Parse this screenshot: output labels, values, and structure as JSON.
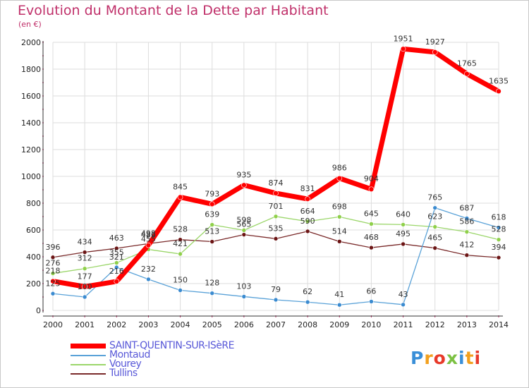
{
  "title": "Evolution du Montant de la Dette par Habitant",
  "unit_label": "(en €)",
  "logo_text": "Proxiti",
  "chart_data": {
    "type": "line",
    "title": "Evolution du Montant de la Dette par Habitant",
    "ylabel": "(en €)",
    "xlabel": "",
    "ylim": [
      0,
      2000
    ],
    "yticks": [
      0,
      200,
      400,
      600,
      800,
      1000,
      1200,
      1400,
      1600,
      1800,
      2000
    ],
    "grid": true,
    "legend_position": "bottom-left",
    "x": [
      "2000",
      "2001",
      "2002",
      "2003",
      "2004",
      "2005",
      "2006",
      "2007",
      "2008",
      "2009",
      "2010",
      "2011",
      "2012",
      "2013",
      "2014"
    ],
    "series": [
      {
        "name": "Tullins",
        "color": "#7a2a2a",
        "marker": "#6b1414",
        "width": 1.3,
        "values": [
          396,
          434,
          463,
          498,
          528,
          513,
          565,
          535,
          590,
          514,
          468,
          495,
          465,
          412,
          394
        ]
      },
      {
        "name": "Vourey",
        "color": "#9bd66a",
        "marker": "#8fd04a",
        "width": 1.3,
        "values": [
          276,
          312,
          355,
          455,
          421,
          639,
          598,
          701,
          664,
          698,
          645,
          640,
          623,
          586,
          528
        ]
      },
      {
        "name": "Montaud",
        "color": "#5aa2d8",
        "marker": "#3b8bd0",
        "width": 1.3,
        "values": [
          125,
          100,
          321,
          232,
          150,
          128,
          103,
          79,
          62,
          41,
          66,
          43,
          765,
          687,
          618
        ]
      },
      {
        "name": "SAINT-QUENTIN-SUR-ISèRE",
        "color": "#ff0000",
        "marker": "#ff0000",
        "width": 7,
        "values": [
          218,
          177,
          216,
          486,
          845,
          793,
          935,
          874,
          831,
          986,
          904,
          1951,
          1927,
          1765,
          1635
        ]
      }
    ],
    "legend_order": [
      "SAINT-QUENTIN-SUR-ISèRE",
      "Montaud",
      "Vourey",
      "Tullins"
    ]
  }
}
